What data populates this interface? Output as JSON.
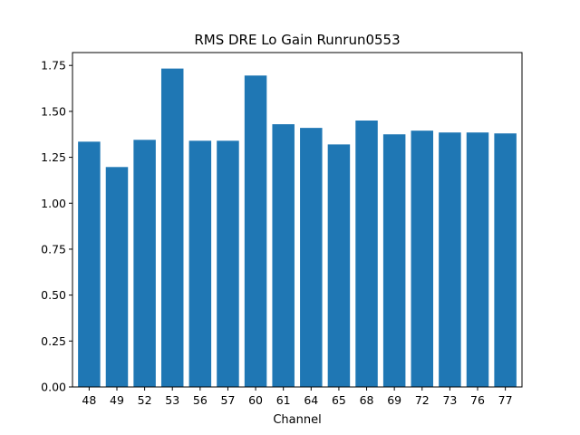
{
  "chart_data": {
    "type": "bar",
    "title": "RMS DRE Lo Gain Runrun0553",
    "xlabel": "Channel",
    "ylabel": "",
    "categories": [
      "48",
      "49",
      "52",
      "53",
      "56",
      "57",
      "60",
      "61",
      "64",
      "65",
      "68",
      "69",
      "72",
      "73",
      "76",
      "77"
    ],
    "values": [
      1.335,
      1.197,
      1.345,
      1.733,
      1.34,
      1.34,
      1.695,
      1.43,
      1.41,
      1.32,
      1.45,
      1.375,
      1.395,
      1.385,
      1.385,
      1.38
    ],
    "ylim": [
      0,
      1.82
    ],
    "yticks": [
      "0.00",
      "0.25",
      "0.50",
      "0.75",
      "1.00",
      "1.25",
      "1.50",
      "1.75"
    ],
    "bar_color": "#1f77b4",
    "grid": false,
    "legend": "none"
  }
}
